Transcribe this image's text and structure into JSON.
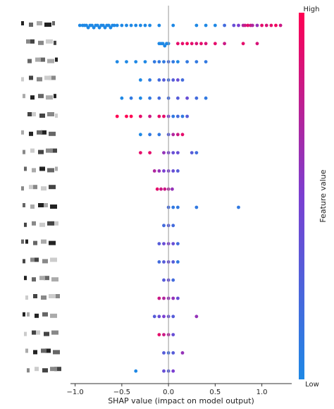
{
  "chart_data": {
    "type": "scatter",
    "variant": "shap-beeswarm",
    "title": "",
    "xlabel": "SHAP value (impact on model output)",
    "xlim": [
      -1.05,
      1.32
    ],
    "xticks": [
      -1.0,
      -0.5,
      0.0,
      0.5,
      1.0
    ],
    "xtick_labels": [
      "−1.0",
      "−0.5",
      "0.0",
      "0.5",
      "1.0"
    ],
    "feature_labels_redacted": true,
    "colorbar": {
      "label": "Feature value",
      "high_label": "High",
      "low_label": "Low",
      "low_color": "#1e88e5",
      "high_color": "#ff0052"
    },
    "rows": [
      {
        "rank": 1,
        "points": [
          [
            -0.95,
            0
          ],
          [
            -0.92,
            0
          ],
          [
            -0.9,
            0
          ],
          [
            -0.88,
            0
          ],
          [
            -0.86,
            0
          ],
          [
            -0.84,
            0
          ],
          [
            -0.82,
            0
          ],
          [
            -0.8,
            0
          ],
          [
            -0.78,
            0
          ],
          [
            -0.76,
            0
          ],
          [
            -0.74,
            0
          ],
          [
            -0.72,
            0
          ],
          [
            -0.7,
            0
          ],
          [
            -0.68,
            0
          ],
          [
            -0.66,
            0
          ],
          [
            -0.64,
            0
          ],
          [
            -0.62,
            0
          ],
          [
            -0.6,
            0
          ],
          [
            -0.58,
            0
          ],
          [
            -0.55,
            0
          ],
          [
            -0.5,
            0
          ],
          [
            -0.45,
            0
          ],
          [
            -0.4,
            0
          ],
          [
            -0.35,
            0
          ],
          [
            -0.3,
            0
          ],
          [
            -0.25,
            0
          ],
          [
            -0.2,
            0
          ],
          [
            -0.1,
            0
          ],
          [
            0.05,
            0
          ],
          [
            0.3,
            0
          ],
          [
            0.4,
            0
          ],
          [
            0.5,
            0
          ],
          [
            0.6,
            0.2
          ],
          [
            0.7,
            0.4
          ],
          [
            0.75,
            0.5
          ],
          [
            0.8,
            0.7
          ],
          [
            0.82,
            0.8
          ],
          [
            0.85,
            0.9
          ],
          [
            0.88,
            0.8
          ],
          [
            0.9,
            0.7
          ],
          [
            0.95,
            0.6
          ],
          [
            1.0,
            0.9
          ],
          [
            1.05,
            0.85
          ],
          [
            1.1,
            0.9
          ],
          [
            1.15,
            0.95
          ],
          [
            1.2,
            0.8
          ]
        ]
      },
      {
        "rank": 2,
        "points": [
          [
            -0.1,
            0
          ],
          [
            -0.08,
            0
          ],
          [
            -0.06,
            0
          ],
          [
            -0.04,
            0
          ],
          [
            -0.02,
            0
          ],
          [
            0.0,
            0
          ],
          [
            0.1,
            0.9
          ],
          [
            0.15,
            0.9
          ],
          [
            0.2,
            0.95
          ],
          [
            0.25,
            0.9
          ],
          [
            0.3,
            0.85
          ],
          [
            0.35,
            0.9
          ],
          [
            0.4,
            0.85
          ],
          [
            0.5,
            0.9
          ],
          [
            0.6,
            0.8
          ],
          [
            0.8,
            0.9
          ],
          [
            0.95,
            0.85
          ]
        ]
      },
      {
        "rank": 3,
        "points": [
          [
            -0.55,
            0
          ],
          [
            -0.45,
            0
          ],
          [
            -0.35,
            0
          ],
          [
            -0.25,
            0
          ],
          [
            -0.15,
            0.1
          ],
          [
            -0.1,
            0.1
          ],
          [
            -0.05,
            0.1
          ],
          [
            0.0,
            0.2
          ],
          [
            0.05,
            0.1
          ],
          [
            0.1,
            0
          ],
          [
            0.2,
            0.1
          ],
          [
            0.3,
            0.1
          ],
          [
            0.4,
            0.1
          ]
        ]
      },
      {
        "rank": 4,
        "points": [
          [
            -0.3,
            0
          ],
          [
            -0.2,
            0.1
          ],
          [
            -0.1,
            0.2
          ],
          [
            -0.05,
            0.3
          ],
          [
            0.0,
            0.2
          ],
          [
            0.05,
            0.3
          ],
          [
            0.1,
            0.4
          ],
          [
            0.15,
            0.2
          ]
        ]
      },
      {
        "rank": 5,
        "points": [
          [
            -0.5,
            0
          ],
          [
            -0.4,
            0.1
          ],
          [
            -0.3,
            0
          ],
          [
            -0.2,
            0.1
          ],
          [
            -0.1,
            0.2
          ],
          [
            0.0,
            0.2
          ],
          [
            0.1,
            0.3
          ],
          [
            0.2,
            0.4
          ],
          [
            0.3,
            0.2
          ],
          [
            0.4,
            0.1
          ]
        ]
      },
      {
        "rank": 6,
        "points": [
          [
            -0.55,
            1
          ],
          [
            -0.45,
            1
          ],
          [
            -0.4,
            1
          ],
          [
            -0.3,
            0.9
          ],
          [
            -0.2,
            0.8
          ],
          [
            -0.1,
            0.9
          ],
          [
            -0.05,
            0.9
          ],
          [
            0.0,
            0.5
          ],
          [
            0.05,
            0.1
          ],
          [
            0.1,
            0.2
          ],
          [
            0.15,
            0.1
          ],
          [
            0.2,
            0.3
          ]
        ]
      },
      {
        "rank": 7,
        "points": [
          [
            -0.3,
            0
          ],
          [
            -0.2,
            0.1
          ],
          [
            -0.1,
            0.1
          ],
          [
            0.0,
            0.3
          ],
          [
            0.05,
            0.7
          ],
          [
            0.1,
            0.8
          ],
          [
            0.15,
            0.9
          ]
        ]
      },
      {
        "rank": 8,
        "points": [
          [
            -0.3,
            0.9
          ],
          [
            -0.2,
            0.9
          ],
          [
            -0.05,
            0.6
          ],
          [
            0.0,
            0.5
          ],
          [
            0.05,
            0.4
          ],
          [
            0.1,
            0.4
          ],
          [
            0.25,
            0.3
          ],
          [
            0.3,
            0.2
          ]
        ]
      },
      {
        "rank": 9,
        "points": [
          [
            -0.15,
            0.7
          ],
          [
            -0.1,
            0.6
          ],
          [
            -0.05,
            0.5
          ],
          [
            0.0,
            0.5
          ],
          [
            0.05,
            0.4
          ],
          [
            0.1,
            0.3
          ]
        ]
      },
      {
        "rank": 10,
        "points": [
          [
            -0.12,
            0.9
          ],
          [
            -0.08,
            0.8
          ],
          [
            -0.04,
            0.8
          ],
          [
            0.0,
            0.7
          ],
          [
            0.04,
            0.6
          ]
        ]
      },
      {
        "rank": 11,
        "points": [
          [
            0.0,
            0.2
          ],
          [
            0.05,
            0.1
          ],
          [
            0.1,
            0.1
          ],
          [
            0.3,
            0.1
          ],
          [
            0.75,
            0.1
          ]
        ]
      },
      {
        "rank": 12,
        "points": [
          [
            -0.05,
            0.2
          ],
          [
            0.0,
            0.3
          ],
          [
            0.05,
            0.2
          ]
        ]
      },
      {
        "rank": 13,
        "points": [
          [
            -0.1,
            0.3
          ],
          [
            -0.05,
            0.4
          ],
          [
            0.0,
            0.5
          ],
          [
            0.05,
            0.4
          ],
          [
            0.1,
            0.2
          ]
        ]
      },
      {
        "rank": 14,
        "points": [
          [
            -0.1,
            0.2
          ],
          [
            -0.05,
            0.3
          ],
          [
            0.0,
            0.4
          ],
          [
            0.05,
            0.3
          ],
          [
            0.1,
            0.1
          ]
        ]
      },
      {
        "rank": 15,
        "points": [
          [
            -0.05,
            0.3
          ],
          [
            0.0,
            0.4
          ],
          [
            0.05,
            0.2
          ]
        ]
      },
      {
        "rank": 16,
        "points": [
          [
            -0.1,
            0.8
          ],
          [
            -0.05,
            0.7
          ],
          [
            0.0,
            0.6
          ],
          [
            0.05,
            0.6
          ],
          [
            0.1,
            0.4
          ]
        ]
      },
      {
        "rank": 17,
        "points": [
          [
            -0.15,
            0.3
          ],
          [
            -0.1,
            0.4
          ],
          [
            -0.05,
            0.5
          ],
          [
            0.0,
            0.4
          ],
          [
            0.05,
            0.3
          ],
          [
            0.3,
            0.6
          ]
        ]
      },
      {
        "rank": 18,
        "points": [
          [
            -0.1,
            0.9
          ],
          [
            -0.05,
            0.8
          ],
          [
            0.0,
            0.7
          ],
          [
            0.05,
            0.4
          ]
        ]
      },
      {
        "rank": 19,
        "points": [
          [
            -0.05,
            0.3
          ],
          [
            0.0,
            0.2
          ],
          [
            0.05,
            0.3
          ],
          [
            0.15,
            0.6
          ]
        ]
      },
      {
        "rank": 20,
        "points": [
          [
            -0.35,
            0
          ],
          [
            -0.05,
            0.4
          ],
          [
            0.0,
            0.3
          ],
          [
            0.05,
            0.5
          ]
        ]
      }
    ]
  }
}
